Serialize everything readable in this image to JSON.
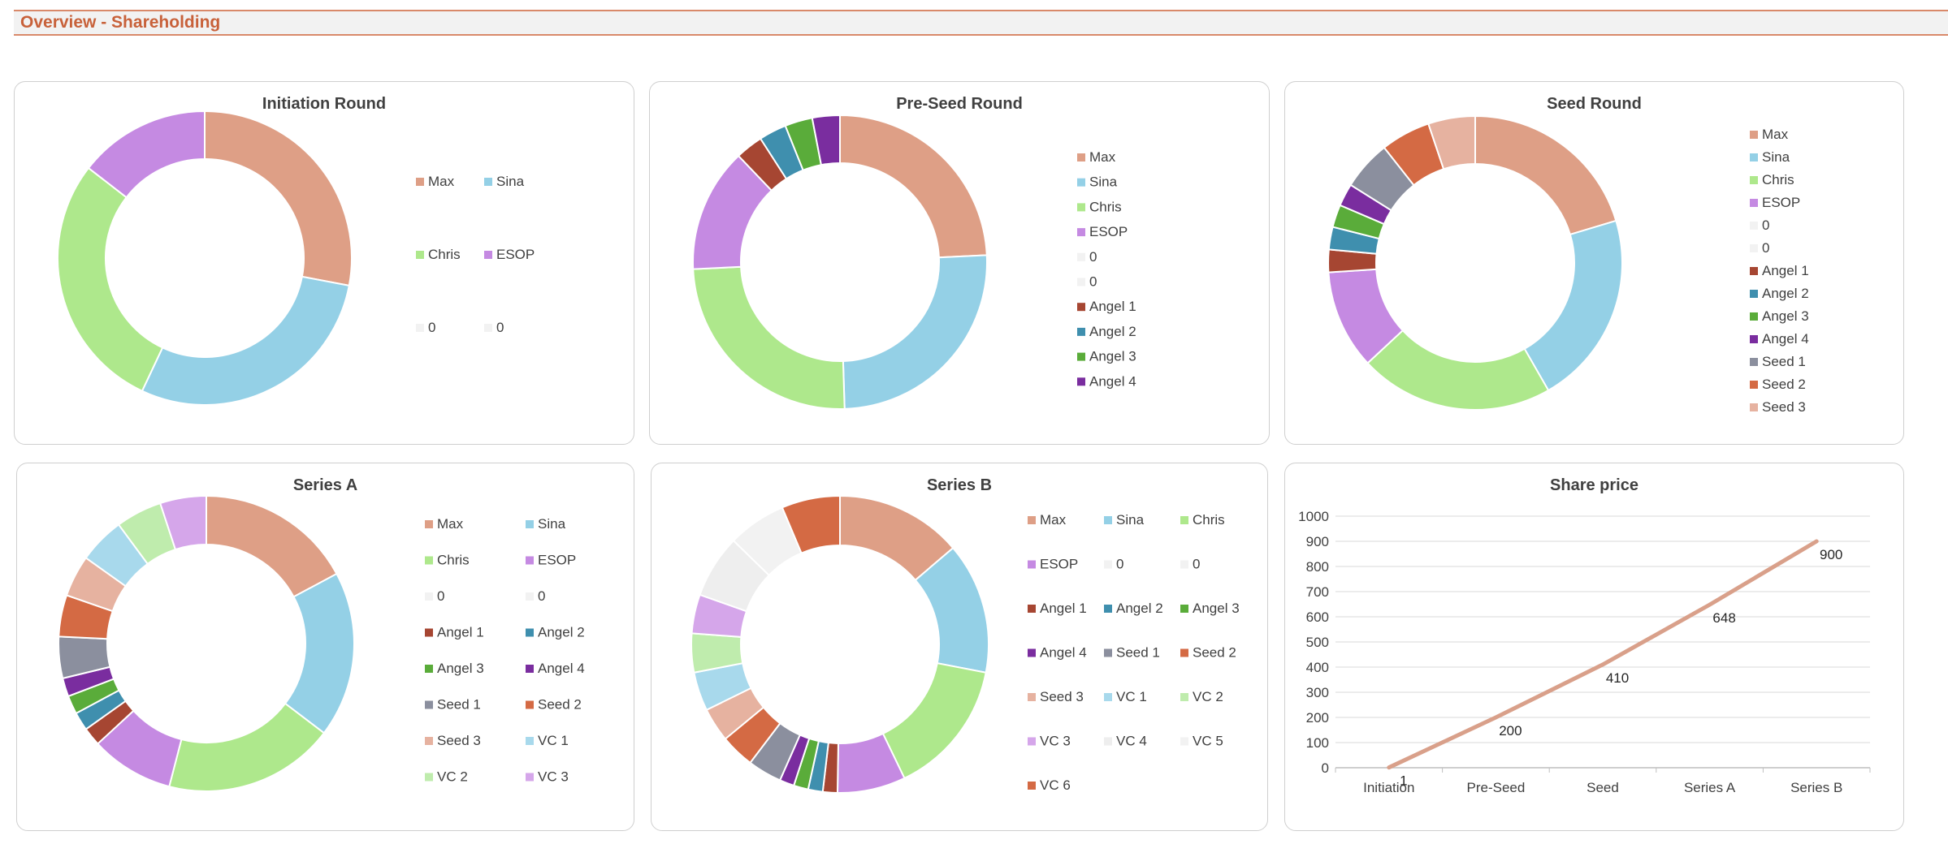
{
  "header": {
    "title": "Overview - Shareholding"
  },
  "colors": {
    "Max": "#de9f86",
    "Sina": "#94d0e6",
    "Chris": "#aee88c",
    "ESOP": "#c58ae2",
    "0": "#f2f2f2",
    "Angel 1": "#a64632",
    "Angel 2": "#3f8fae",
    "Angel 3": "#5aac3a",
    "Angel 4": "#7a2d9f",
    "Seed 1": "#8b8f9e",
    "Seed 2": "#d46a44",
    "Seed 3": "#e6b2a0",
    "VC 1": "#a8d9ec",
    "VC 2": "#bfecad",
    "VC 3": "#d5a6ea",
    "VC 4": "#eeeeee",
    "VC 5": "#f2f2f2",
    "VC 6": "#d46a44"
  },
  "chart_data": [
    {
      "id": "initiation",
      "type": "pie",
      "title": "Initiation Round",
      "labels": [
        "Max",
        "Sina",
        "Chris",
        "ESOP",
        "0",
        "0"
      ],
      "values": [
        28,
        29,
        28.5,
        14.5,
        0,
        0
      ],
      "legend_labels": [
        "Max",
        "Sina",
        "Chris",
        "ESOP",
        "0",
        "0"
      ]
    },
    {
      "id": "preseed",
      "type": "pie",
      "title": "Pre-Seed Round",
      "labels": [
        "Max",
        "Sina",
        "Chris",
        "ESOP",
        "0",
        "0",
        "Angel 1",
        "Angel 2",
        "Angel 3",
        "Angel 4"
      ],
      "values": [
        24,
        25,
        24.5,
        13.5,
        0,
        0,
        3,
        3,
        3,
        3
      ],
      "legend_labels": [
        "Max",
        "Sina",
        "Chris",
        "ESOP",
        "0",
        "0",
        "Angel 1",
        "Angel 2",
        "Angel 3",
        "Angel 4"
      ]
    },
    {
      "id": "seed",
      "type": "pie",
      "title": "Seed Round",
      "labels": [
        "Max",
        "Sina",
        "Chris",
        "ESOP",
        "0",
        "0",
        "Angel 1",
        "Angel 2",
        "Angel 3",
        "Angel 4",
        "Seed 1",
        "Seed 2",
        "Seed 3"
      ],
      "values": [
        20.5,
        21.5,
        21.5,
        11,
        0,
        0,
        2.5,
        2.5,
        2.5,
        2.5,
        5.5,
        5.5,
        5.2
      ],
      "legend_labels": [
        "Max",
        "Sina",
        "Chris",
        "ESOP",
        "0",
        "0",
        "Angel 1",
        "Angel 2",
        "Angel 3",
        "Angel 4",
        "Seed 1",
        "Seed 2",
        "Seed 3"
      ]
    },
    {
      "id": "seriesa",
      "type": "pie",
      "title": "Series A",
      "labels": [
        "Max",
        "Sina",
        "Chris",
        "ESOP",
        "0",
        "0",
        "Angel 1",
        "Angel 2",
        "Angel 3",
        "Angel 4",
        "Seed 1",
        "Seed 2",
        "Seed 3",
        "VC 1",
        "VC 2",
        "VC 3"
      ],
      "values": [
        17,
        18,
        18.5,
        9,
        0,
        0,
        2,
        2,
        2,
        2,
        4.5,
        4.5,
        4.5,
        5,
        5,
        5
      ],
      "legend_labels": [
        "Max",
        "Sina",
        "Chris",
        "ESOP",
        "0",
        "0",
        "Angel 1",
        "Angel 2",
        "Angel 3",
        "Angel 4",
        "Seed 1",
        "Seed 2",
        "Seed 3",
        "VC 1",
        "VC 2",
        "VC 3"
      ]
    },
    {
      "id": "seriesb",
      "type": "pie",
      "title": "Series B",
      "labels": [
        "Max",
        "Sina",
        "Chris",
        "ESOP",
        "0",
        "0",
        "Angel 1",
        "Angel 2",
        "Angel 3",
        "Angel 4",
        "Seed 1",
        "Seed 2",
        "Seed 3",
        "VC 1",
        "VC 2",
        "VC 3",
        "VC 4",
        "VC 5",
        "VC 6"
      ],
      "values": [
        13,
        13.5,
        14,
        7,
        0,
        0,
        1.5,
        1.5,
        1.5,
        1.5,
        3.5,
        3.5,
        3.5,
        4,
        4,
        4,
        6.5,
        6,
        6
      ],
      "legend_labels": [
        "Max",
        "Sina",
        "Chris",
        "ESOP",
        "0",
        "0",
        "Angel 1",
        "Angel 2",
        "Angel 3",
        "Angel 4",
        "Seed 1",
        "Seed 2",
        "Seed 3",
        "VC 1",
        "VC 2",
        "VC 3",
        "VC 4",
        "VC 5",
        "VC 6"
      ]
    },
    {
      "id": "shareprice",
      "type": "line",
      "title": "Share price",
      "categories": [
        "Initiation",
        "Pre-Seed",
        "Seed",
        "Series A",
        "Series B"
      ],
      "values": [
        1,
        200,
        410,
        648,
        900
      ],
      "data_labels": [
        "1",
        "200",
        "410",
        "648",
        "900"
      ],
      "ylim": [
        0,
        1000
      ],
      "yticks": [
        "0",
        "100",
        "200",
        "300",
        "400",
        "500",
        "600",
        "700",
        "800",
        "900",
        "1000"
      ],
      "line_color": "#d9a08a",
      "grid": true
    }
  ]
}
